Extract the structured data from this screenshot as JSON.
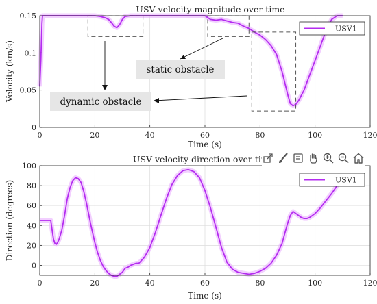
{
  "colors": {
    "series": "#b42cf0",
    "series_band": "#e7a8ff",
    "axis": "#262626",
    "grid": "#dcdcdc",
    "annot_box_fill": "#e6e6e6",
    "dashed_box": "#555555"
  },
  "toolbar": {
    "icons": [
      "export-icon",
      "brush-icon",
      "datatips-icon",
      "pan-hand-icon",
      "zoom-in-icon",
      "zoom-out-icon",
      "home-icon"
    ]
  },
  "chart_data": [
    {
      "type": "line",
      "title": "USV velocity magnitude over time",
      "xlabel": "Time (s)",
      "ylabel": "Velocity (km/s)",
      "xlim": [
        0,
        120
      ],
      "ylim": [
        0,
        0.15
      ],
      "xticks": [
        0,
        20,
        40,
        60,
        80,
        100,
        120
      ],
      "yticks": [
        0,
        0.05,
        0.1,
        0.15
      ],
      "xtick_labels": [
        "0",
        "20",
        "40",
        "60",
        "80",
        "100",
        "120"
      ],
      "ytick_labels": [
        "0",
        "0.05",
        "0.1",
        "0.15"
      ],
      "grid": true,
      "legend_position": "top-right",
      "series": [
        {
          "name": "USV1",
          "x": [
            0,
            0.4,
            0.8,
            1,
            1.5,
            2,
            5,
            10,
            15,
            20,
            22,
            24,
            25,
            26,
            27,
            28,
            29,
            30,
            31,
            33,
            35,
            40,
            50,
            60,
            62,
            64,
            66,
            68,
            70,
            72,
            74,
            76,
            78,
            80,
            82,
            84,
            86,
            88,
            90,
            91,
            92,
            93,
            94,
            96,
            98,
            100,
            102,
            104,
            106,
            108,
            110
          ],
          "y": [
            0.055,
            0.09,
            0.14,
            0.15,
            0.15,
            0.15,
            0.15,
            0.15,
            0.15,
            0.15,
            0.149,
            0.147,
            0.145,
            0.141,
            0.136,
            0.134,
            0.138,
            0.145,
            0.149,
            0.15,
            0.15,
            0.15,
            0.15,
            0.15,
            0.145,
            0.144,
            0.145,
            0.143,
            0.141,
            0.14,
            0.136,
            0.133,
            0.128,
            0.124,
            0.118,
            0.11,
            0.098,
            0.075,
            0.045,
            0.032,
            0.029,
            0.031,
            0.036,
            0.05,
            0.07,
            0.09,
            0.11,
            0.13,
            0.145,
            0.15,
            0.15
          ]
        }
      ],
      "annotations": [
        {
          "text": "static obstacle",
          "x": 67,
          "y": 0.091
        },
        {
          "text": "dynamic obstacle",
          "x": 32,
          "y": 0.035
        }
      ],
      "highlight_regions": [
        {
          "x": [
            17.5,
            37.5
          ],
          "y": [
            0.122,
            0.15
          ]
        },
        {
          "x": [
            61,
            76
          ],
          "y": [
            0.122,
            0.15
          ]
        },
        {
          "x": [
            77,
            93
          ],
          "y": [
            0.022,
            0.128
          ]
        }
      ]
    },
    {
      "type": "line",
      "title": "USV velocity direction over time",
      "xlabel": "Time (s)",
      "ylabel": "Direction (degrees)",
      "xlim": [
        0,
        120
      ],
      "ylim": [
        -10,
        100
      ],
      "xticks": [
        0,
        20,
        40,
        60,
        80,
        100,
        120
      ],
      "yticks": [
        0,
        20,
        40,
        60,
        80,
        100
      ],
      "xtick_labels": [
        "0",
        "20",
        "40",
        "60",
        "80",
        "100",
        "120"
      ],
      "ytick_labels": [
        "0",
        "20",
        "40",
        "60",
        "80",
        "100"
      ],
      "grid": true,
      "legend_position": "top-right",
      "series": [
        {
          "name": "USV1",
          "x": [
            0,
            4,
            4.5,
            5,
            5.5,
            6,
            6.5,
            7,
            8,
            9,
            10,
            11,
            12,
            13,
            14,
            15,
            16,
            17,
            18,
            19,
            20,
            21,
            22,
            23,
            24,
            25,
            26,
            27,
            28,
            29,
            30,
            31,
            32,
            33,
            34,
            35,
            36,
            38,
            40,
            42,
            44,
            46,
            48,
            50,
            52,
            54,
            56,
            58,
            60,
            62,
            64,
            66,
            68,
            70,
            72,
            74,
            76,
            78,
            80,
            82,
            84,
            86,
            88,
            89,
            90,
            91,
            92,
            93,
            94,
            95,
            96,
            97,
            98,
            100,
            102,
            104,
            106,
            108,
            110
          ],
          "y": [
            45,
            45,
            35,
            26,
            22,
            21,
            23,
            26,
            35,
            50,
            67,
            78,
            85,
            88,
            87,
            83,
            74,
            62,
            48,
            35,
            23,
            13,
            5,
            -1,
            -5,
            -8,
            -10,
            -11,
            -11,
            -9,
            -7,
            -3,
            -2,
            0,
            1,
            2,
            2,
            8,
            18,
            33,
            50,
            67,
            81,
            90,
            95,
            96,
            94,
            88,
            75,
            58,
            38,
            18,
            3,
            -4,
            -7,
            -8,
            -9,
            -8,
            -6,
            -3,
            2,
            10,
            22,
            32,
            42,
            50,
            54,
            52,
            50,
            48,
            47,
            47,
            48,
            52,
            58,
            65,
            72,
            80,
            87
          ]
        }
      ]
    }
  ]
}
